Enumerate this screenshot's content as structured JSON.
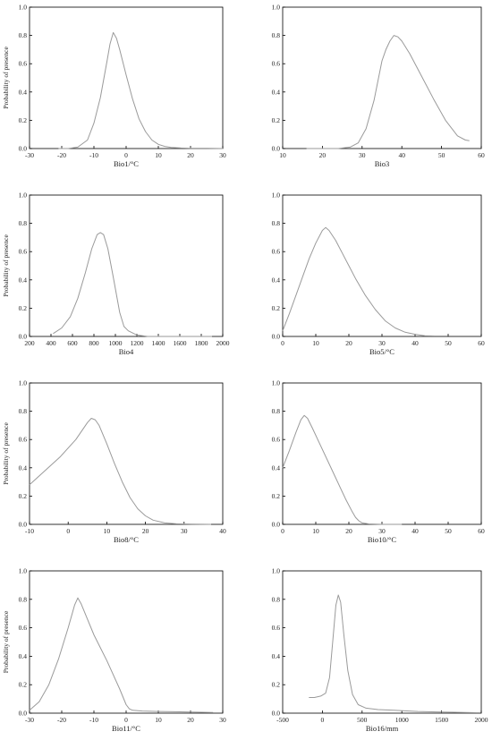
{
  "chart_data": [
    {
      "type": "line",
      "xlabel": "Bio1/°C",
      "ylabel": "Probability of presence",
      "xlim": [
        -30,
        30
      ],
      "ylim": [
        0,
        1.0
      ],
      "xticks": [
        -30,
        -20,
        -10,
        0,
        10,
        20,
        30
      ],
      "yticks": [
        0.0,
        0.2,
        0.4,
        0.6,
        0.8,
        1.0
      ],
      "x": [
        -21,
        -18,
        -15,
        -12,
        -10,
        -8,
        -6,
        -5,
        -4,
        -3,
        -2,
        0,
        2,
        4,
        6,
        8,
        10,
        12,
        14,
        17,
        20,
        25,
        30
      ],
      "y": [
        0.0,
        0.0,
        0.01,
        0.06,
        0.18,
        0.36,
        0.61,
        0.74,
        0.82,
        0.78,
        0.7,
        0.52,
        0.35,
        0.21,
        0.12,
        0.06,
        0.03,
        0.015,
        0.008,
        0.004,
        0.002,
        0.001,
        0.0
      ]
    },
    {
      "type": "line",
      "xlabel": "Bio3",
      "ylabel": "",
      "xlim": [
        10,
        60
      ],
      "ylim": [
        0,
        1.0
      ],
      "xticks": [
        10,
        20,
        30,
        40,
        50,
        60
      ],
      "yticks": [
        0.0,
        0.2,
        0.4,
        0.6,
        0.8,
        1.0
      ],
      "x": [
        16,
        20,
        24,
        27,
        29,
        31,
        33,
        35,
        36,
        37,
        38,
        39,
        40,
        42,
        45,
        48,
        51,
        54,
        56,
        57
      ],
      "y": [
        0.0,
        0.0,
        0.0,
        0.01,
        0.04,
        0.14,
        0.34,
        0.62,
        0.7,
        0.76,
        0.8,
        0.79,
        0.76,
        0.67,
        0.51,
        0.35,
        0.2,
        0.09,
        0.06,
        0.055
      ]
    },
    {
      "type": "line",
      "xlabel": "Bio4",
      "ylabel": "Probability of presence",
      "xlim": [
        200,
        2000
      ],
      "ylim": [
        0,
        1.0
      ],
      "xticks": [
        200,
        400,
        600,
        800,
        1000,
        1200,
        1400,
        1600,
        1800,
        2000
      ],
      "yticks": [
        0.0,
        0.2,
        0.4,
        0.6,
        0.8,
        1.0
      ],
      "x": [
        420,
        500,
        580,
        650,
        720,
        780,
        830,
        860,
        890,
        930,
        980,
        1040,
        1080,
        1120,
        1200,
        1300,
        1500,
        1700,
        1900
      ],
      "y": [
        0.02,
        0.06,
        0.14,
        0.27,
        0.45,
        0.62,
        0.72,
        0.735,
        0.72,
        0.62,
        0.42,
        0.17,
        0.07,
        0.04,
        0.01,
        0.0,
        0.0,
        0.0,
        0.0
      ]
    },
    {
      "type": "line",
      "xlabel": "Bio5/°C",
      "ylabel": "",
      "xlim": [
        0,
        60
      ],
      "ylim": [
        0,
        1.0
      ],
      "xticks": [
        0,
        10,
        20,
        30,
        40,
        50,
        60
      ],
      "yticks": [
        0.0,
        0.2,
        0.4,
        0.6,
        0.8,
        1.0
      ],
      "x": [
        0,
        2,
        4,
        6,
        8,
        10,
        12,
        13,
        14,
        16,
        18,
        20,
        22,
        25,
        28,
        31,
        34,
        37,
        40,
        43,
        46
      ],
      "y": [
        0.04,
        0.16,
        0.29,
        0.42,
        0.55,
        0.66,
        0.75,
        0.77,
        0.75,
        0.68,
        0.59,
        0.5,
        0.41,
        0.29,
        0.19,
        0.11,
        0.06,
        0.03,
        0.015,
        0.005,
        0.003
      ]
    },
    {
      "type": "line",
      "xlabel": "Bio8/°C",
      "ylabel": "Probability of presence",
      "xlim": [
        -10,
        40
      ],
      "ylim": [
        0,
        1.0
      ],
      "xticks": [
        -10,
        0,
        10,
        20,
        30,
        40
      ],
      "yticks": [
        0.0,
        0.2,
        0.4,
        0.6,
        0.8,
        1.0
      ],
      "x": [
        -10,
        -6,
        -2,
        2,
        5,
        6,
        7,
        8,
        10,
        12,
        14,
        16,
        18,
        20,
        22,
        25,
        28,
        32,
        37
      ],
      "y": [
        0.28,
        0.38,
        0.48,
        0.6,
        0.72,
        0.75,
        0.74,
        0.7,
        0.57,
        0.43,
        0.3,
        0.19,
        0.11,
        0.06,
        0.03,
        0.01,
        0.004,
        0.001,
        0.0
      ]
    },
    {
      "type": "line",
      "xlabel": "Bio10/°C",
      "ylabel": "",
      "xlim": [
        0,
        60
      ],
      "ylim": [
        0,
        1.0
      ],
      "xticks": [
        0,
        10,
        20,
        30,
        40,
        50,
        60
      ],
      "yticks": [
        0.0,
        0.2,
        0.4,
        0.6,
        0.8,
        1.0
      ],
      "x": [
        0,
        2,
        4,
        5.5,
        6.5,
        7.5,
        9,
        11,
        13,
        15,
        17,
        19,
        21,
        22,
        23,
        24,
        26,
        30,
        36
      ],
      "y": [
        0.4,
        0.52,
        0.65,
        0.74,
        0.77,
        0.75,
        0.68,
        0.58,
        0.48,
        0.38,
        0.28,
        0.18,
        0.09,
        0.05,
        0.025,
        0.01,
        0.003,
        0.0,
        0.0
      ]
    },
    {
      "type": "line",
      "xlabel": "Bio11/°C",
      "ylabel": "Probability of presence",
      "xlim": [
        -30,
        30
      ],
      "ylim": [
        0,
        1.0
      ],
      "xticks": [
        -30,
        -20,
        -10,
        0,
        10,
        20,
        30
      ],
      "yticks": [
        0.0,
        0.2,
        0.4,
        0.6,
        0.8,
        1.0
      ],
      "x": [
        -30,
        -27,
        -24,
        -21,
        -18,
        -16,
        -15,
        -14,
        -12,
        -10,
        -8,
        -6,
        -4,
        -2,
        0,
        1,
        2,
        5,
        10,
        15,
        20,
        27
      ],
      "y": [
        0.02,
        0.08,
        0.2,
        0.38,
        0.6,
        0.76,
        0.81,
        0.77,
        0.66,
        0.55,
        0.46,
        0.37,
        0.27,
        0.17,
        0.06,
        0.03,
        0.02,
        0.015,
        0.012,
        0.01,
        0.008,
        0.005
      ]
    },
    {
      "type": "line",
      "xlabel": "Bio16/mm",
      "ylabel": "",
      "xlim": [
        -500,
        2000
      ],
      "ylim": [
        0,
        1.0
      ],
      "xticks": [
        -500,
        0,
        500,
        1000,
        1500,
        2000
      ],
      "yticks": [
        0.0,
        0.2,
        0.4,
        0.6,
        0.8,
        1.0
      ],
      "x": [
        -170,
        -100,
        -20,
        40,
        90,
        130,
        170,
        200,
        230,
        270,
        320,
        380,
        450,
        550,
        700,
        900,
        1200,
        1500,
        1800,
        1950
      ],
      "y": [
        0.11,
        0.11,
        0.12,
        0.14,
        0.25,
        0.5,
        0.76,
        0.83,
        0.78,
        0.55,
        0.3,
        0.13,
        0.06,
        0.035,
        0.025,
        0.02,
        0.012,
        0.008,
        0.005,
        0.003
      ]
    }
  ]
}
